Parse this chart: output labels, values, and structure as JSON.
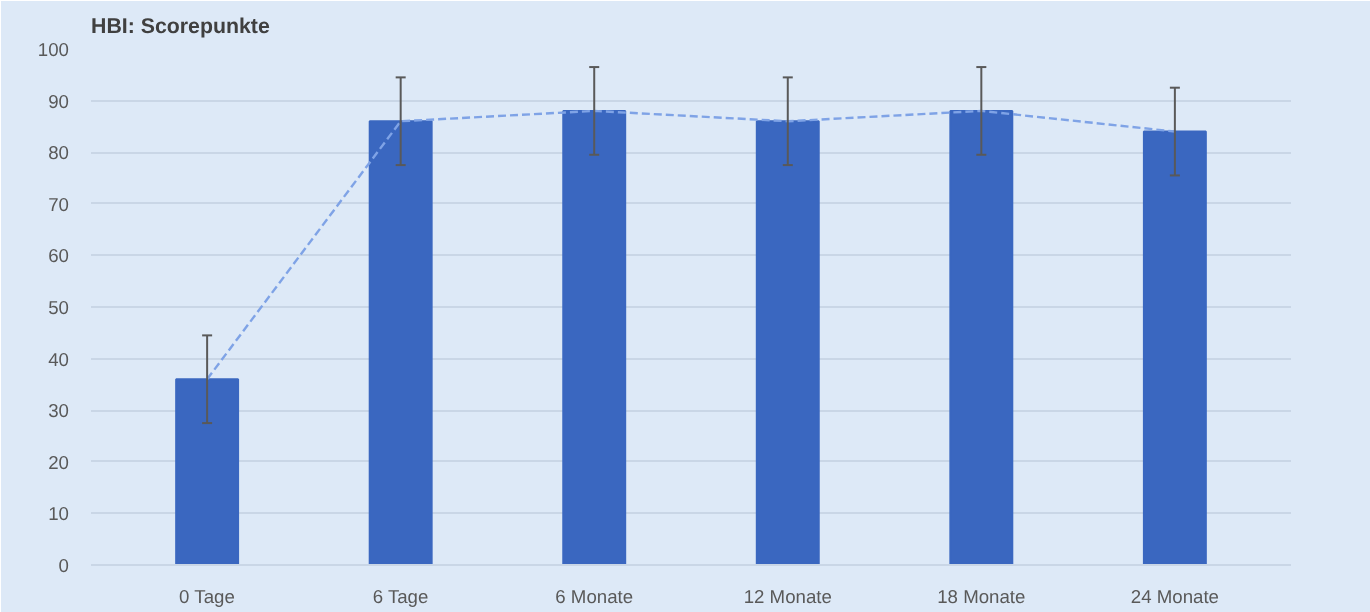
{
  "chart_data": {
    "type": "bar",
    "title": "HBI: Scorepunkte",
    "categories": [
      "0 Tage",
      "6 Tage",
      "6 Monate",
      "12 Monate",
      "18 Monate",
      "24 Monate"
    ],
    "series": [
      {
        "color": "#3a67c0",
        "values": [
          36,
          86,
          88,
          86,
          88,
          84
        ],
        "errors": [
          8.5,
          8.5,
          8.5,
          8.5,
          8.5,
          8.5
        ]
      },
      {
        "type": "line",
        "color": "#7fa3e6",
        "line_style": "dashed",
        "values": [
          36,
          86,
          88,
          86,
          88,
          84
        ]
      }
    ],
    "ylim": [
      0,
      100
    ],
    "yticks": [
      0,
      10,
      20,
      30,
      40,
      50,
      60,
      70,
      80,
      90,
      100
    ],
    "grid": "y"
  }
}
